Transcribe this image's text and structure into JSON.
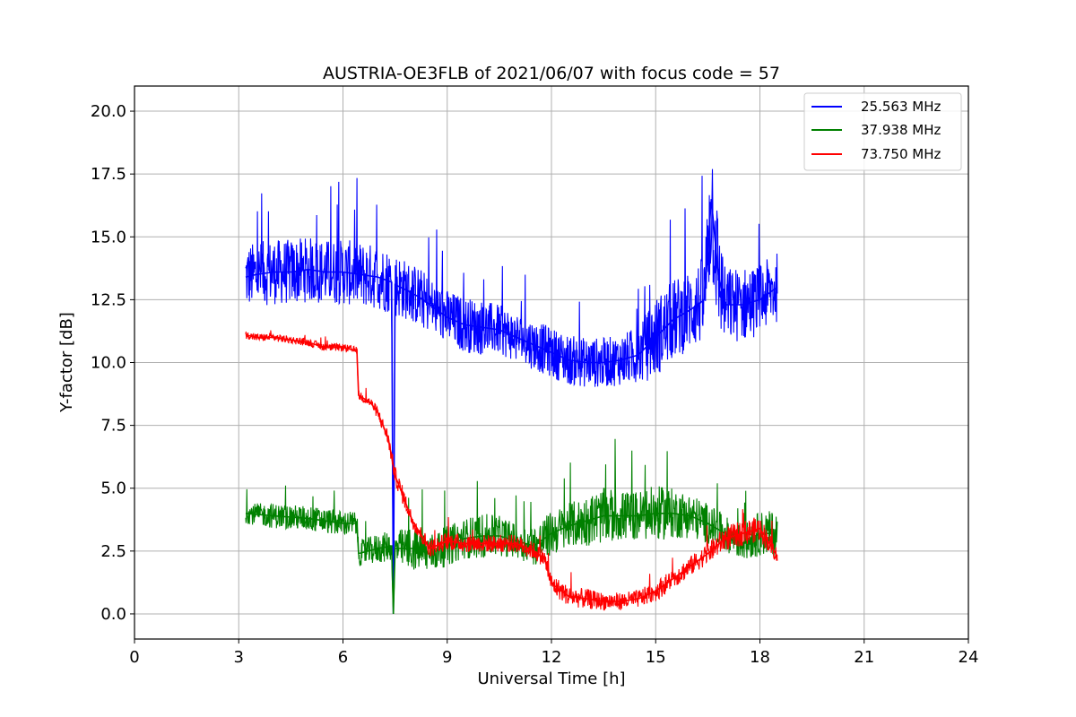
{
  "chart_data": {
    "type": "line",
    "title": "AUSTRIA-OE3FLB of 2021/06/07 with focus code = 57",
    "xlabel": "Universal Time [h]",
    "ylabel": "Y-factor [dB]",
    "xlim": [
      0,
      24
    ],
    "ylim": [
      -1.0,
      21.0
    ],
    "xticks": [
      0,
      3,
      6,
      9,
      12,
      15,
      18,
      21,
      24
    ],
    "xtick_labels": [
      "0",
      "3",
      "6",
      "9",
      "12",
      "15",
      "18",
      "21",
      "24"
    ],
    "yticks": [
      0.0,
      2.5,
      5.0,
      7.5,
      10.0,
      12.5,
      15.0,
      17.5,
      20.0
    ],
    "ytick_labels": [
      "0.0",
      "2.5",
      "5.0",
      "7.5",
      "10.0",
      "12.5",
      "15.0",
      "17.5",
      "20.0"
    ],
    "grid": true,
    "legend_position": "top-right",
    "series": [
      {
        "name": "25.563 MHz",
        "color": "#0000ff",
        "x": [
          3.2,
          3.5,
          4.0,
          4.5,
          5.0,
          5.5,
          6.0,
          6.5,
          7.0,
          7.4,
          7.45,
          7.5,
          7.8,
          8.2,
          8.6,
          9.0,
          9.5,
          10.0,
          10.5,
          11.0,
          11.5,
          12.0,
          12.5,
          13.0,
          13.5,
          14.0,
          14.5,
          15.0,
          15.5,
          16.0,
          16.4,
          16.6,
          16.8,
          17.0,
          17.5,
          18.0,
          18.5
        ],
        "y": [
          13.4,
          13.5,
          13.6,
          13.6,
          13.7,
          13.6,
          13.6,
          13.5,
          13.4,
          13.2,
          0.0,
          13.1,
          12.9,
          12.6,
          12.2,
          11.8,
          11.5,
          11.4,
          11.3,
          11.0,
          10.7,
          10.4,
          10.1,
          10.0,
          10.0,
          10.1,
          10.3,
          11.0,
          11.7,
          12.1,
          12.5,
          16.5,
          13.5,
          12.3,
          12.3,
          12.5,
          13.0
        ],
        "band": [
          1.3,
          1.3,
          1.3,
          1.3,
          1.3,
          1.3,
          1.3,
          1.3,
          1.3,
          1.3,
          0.0,
          1.3,
          1.2,
          1.2,
          1.1,
          1.1,
          1.1,
          1.1,
          1.0,
          1.0,
          1.0,
          1.0,
          1.0,
          1.0,
          1.0,
          1.0,
          1.2,
          1.6,
          1.6,
          1.6,
          1.8,
          3.0,
          2.4,
          1.5,
          1.5,
          1.4,
          1.4
        ]
      },
      {
        "name": "37.938 MHz",
        "color": "#008000",
        "x": [
          3.2,
          4.0,
          5.0,
          6.0,
          6.4,
          6.45,
          7.0,
          7.4,
          7.45,
          7.5,
          8.0,
          8.5,
          9.0,
          9.5,
          10.0,
          10.5,
          11.0,
          11.5,
          12.0,
          12.5,
          13.0,
          13.5,
          14.0,
          14.5,
          15.0,
          15.5,
          16.0,
          16.5,
          17.0,
          17.5,
          18.0,
          18.5
        ],
        "y": [
          4.0,
          3.9,
          3.8,
          3.6,
          3.6,
          2.4,
          2.6,
          2.7,
          0.0,
          2.6,
          2.6,
          2.4,
          2.7,
          3.0,
          3.1,
          3.1,
          2.9,
          2.7,
          3.2,
          3.5,
          3.7,
          3.9,
          3.9,
          3.9,
          4.0,
          4.0,
          3.9,
          3.6,
          3.2,
          2.8,
          3.2,
          3.2
        ],
        "band": [
          0.4,
          0.5,
          0.5,
          0.5,
          0.5,
          0.5,
          0.6,
          0.6,
          0.0,
          0.7,
          0.9,
          0.8,
          0.8,
          0.8,
          0.9,
          0.8,
          0.7,
          0.8,
          0.9,
          0.9,
          1.0,
          1.1,
          1.0,
          1.0,
          1.1,
          1.0,
          0.9,
          0.8,
          0.7,
          0.7,
          0.9,
          0.9
        ]
      },
      {
        "name": "73.750 MHz",
        "color": "#ff0000",
        "x": [
          3.2,
          3.5,
          4.0,
          4.5,
          5.0,
          5.5,
          6.0,
          6.3,
          6.4,
          6.45,
          6.8,
          7.0,
          7.3,
          7.5,
          7.7,
          8.0,
          8.5,
          9.0,
          9.5,
          10.0,
          10.5,
          11.0,
          11.5,
          11.8,
          12.0,
          12.5,
          13.0,
          13.5,
          14.0,
          14.5,
          15.0,
          15.5,
          16.0,
          16.5,
          17.0,
          17.5,
          18.0,
          18.5
        ],
        "y": [
          11.1,
          11.0,
          11.0,
          10.9,
          10.8,
          10.6,
          10.6,
          10.5,
          10.5,
          8.7,
          8.4,
          8.0,
          7.0,
          5.5,
          4.8,
          3.7,
          2.6,
          2.9,
          2.8,
          2.8,
          2.8,
          2.8,
          2.5,
          2.2,
          1.2,
          0.7,
          0.6,
          0.5,
          0.5,
          0.6,
          0.9,
          1.4,
          1.9,
          2.4,
          3.0,
          3.2,
          3.4,
          2.3
        ],
        "band": [
          0.15,
          0.15,
          0.15,
          0.15,
          0.15,
          0.15,
          0.15,
          0.15,
          0.15,
          0.2,
          0.2,
          0.25,
          0.3,
          0.35,
          0.35,
          0.3,
          0.35,
          0.35,
          0.35,
          0.35,
          0.35,
          0.35,
          0.35,
          0.35,
          0.4,
          0.4,
          0.4,
          0.35,
          0.35,
          0.35,
          0.4,
          0.4,
          0.4,
          0.4,
          0.5,
          0.5,
          0.5,
          0.3
        ]
      }
    ]
  }
}
